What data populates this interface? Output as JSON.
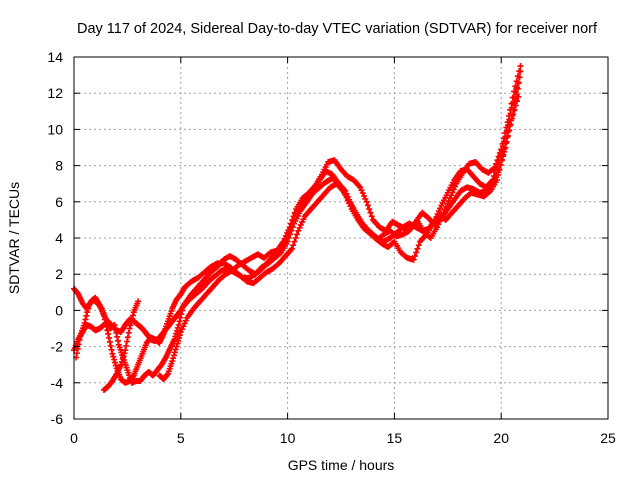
{
  "chart_data": {
    "type": "scatter",
    "title": "Day 117 of 2024, Sidereal Day-to-day VTEC variation (SDTVAR) for receiver norf",
    "xlabel": "GPS time / hours",
    "ylabel": "SDTVAR / TECUs",
    "xlim": [
      0,
      25
    ],
    "ylim": [
      -6,
      14
    ],
    "xticks": [
      0,
      5,
      10,
      15,
      20,
      25
    ],
    "yticks": [
      -6,
      -4,
      -2,
      0,
      2,
      4,
      6,
      8,
      10,
      12,
      14
    ],
    "grid": true,
    "legend": "none",
    "marker": "plus",
    "series_color": "#ff0000",
    "series": [
      {
        "x": [
          0.0,
          0.2,
          0.4,
          0.6,
          0.8,
          1.0,
          1.2,
          1.4,
          1.6,
          1.8,
          2.0,
          2.2,
          2.4,
          2.6,
          2.8,
          3.0,
          3.2,
          3.4,
          3.6,
          3.8,
          4.0,
          4.2,
          4.4,
          4.6,
          4.8,
          5.0,
          5.2,
          5.5,
          5.8,
          6.1,
          6.4,
          6.7,
          7.0,
          7.3,
          7.6,
          7.9,
          8.2,
          8.5,
          8.8,
          9.1,
          9.4,
          9.7,
          10.0,
          10.3,
          10.6,
          10.9,
          11.2,
          11.5,
          11.8,
          12.1,
          12.4,
          12.7,
          13.0,
          13.3,
          13.6,
          13.9,
          14.2,
          14.5,
          14.8,
          15.1,
          15.4,
          15.7,
          16.0,
          16.3,
          16.6,
          16.9,
          17.2,
          17.5,
          17.8,
          18.1,
          18.4,
          18.7,
          19.0,
          19.3,
          19.6,
          19.9,
          20.2,
          20.5,
          20.8
        ],
        "y": [
          -2.2,
          -1.6,
          -1.2,
          -0.8,
          -0.9,
          -1.1,
          -1.0,
          -0.8,
          -0.6,
          -0.9,
          -1.1,
          -1.2,
          -0.8,
          -0.5,
          -0.6,
          -0.8,
          -1.0,
          -1.3,
          -1.6,
          -1.7,
          -1.5,
          -1.2,
          -0.9,
          -0.6,
          -0.3,
          0.0,
          0.4,
          0.9,
          1.3,
          1.7,
          2.1,
          2.4,
          2.8,
          3.0,
          2.8,
          2.5,
          2.2,
          2.0,
          2.3,
          2.7,
          3.1,
          3.5,
          4.1,
          5.2,
          5.8,
          6.2,
          6.6,
          7.2,
          7.7,
          7.5,
          7.0,
          6.6,
          5.8,
          5.1,
          4.6,
          4.3,
          4.0,
          3.8,
          4.0,
          4.3,
          4.6,
          4.8,
          4.6,
          4.4,
          4.5,
          5.0,
          5.8,
          6.5,
          7.2,
          7.7,
          7.8,
          7.4,
          7.0,
          6.8,
          7.2,
          8.3,
          9.6,
          11.2,
          12.6
        ]
      },
      {
        "x": [
          0.0,
          0.2,
          0.4,
          0.6,
          0.8,
          1.0,
          1.2,
          1.4,
          1.6,
          1.8,
          2.0,
          2.2,
          2.4,
          2.6,
          2.8,
          3.0,
          3.2,
          3.4,
          3.6,
          3.8,
          4.0,
          4.2,
          4.4,
          4.6,
          4.8,
          5.0,
          5.2,
          5.5,
          5.8,
          6.1,
          6.4,
          6.7,
          7.0,
          7.3,
          7.6,
          7.9,
          8.2,
          8.5,
          8.8,
          9.1,
          9.4,
          9.7,
          10.0,
          10.3,
          10.6,
          10.9,
          11.2,
          11.5,
          11.8,
          12.1,
          12.4,
          12.7,
          13.0,
          13.3,
          13.6,
          13.9,
          14.2,
          14.5,
          14.8,
          15.1,
          15.4,
          15.7,
          16.0,
          16.3,
          16.6,
          16.9,
          17.2,
          17.5,
          17.8,
          18.1,
          18.4,
          18.7,
          19.0,
          19.3,
          19.6,
          19.9,
          20.2,
          20.5,
          20.8
        ],
        "y": [
          1.2,
          0.9,
          0.4,
          0.1,
          0.5,
          0.7,
          0.3,
          -0.3,
          -1.3,
          -2.4,
          -3.2,
          -3.8,
          -4.0,
          -3.9,
          -3.6,
          -3.0,
          -2.4,
          -1.8,
          -1.5,
          -1.6,
          -1.8,
          -1.3,
          -0.6,
          0.1,
          0.6,
          0.9,
          1.3,
          1.6,
          1.8,
          2.1,
          2.4,
          2.6,
          2.6,
          2.4,
          2.1,
          1.8,
          1.8,
          2.0,
          2.4,
          2.6,
          2.9,
          3.2,
          3.8,
          4.8,
          5.5,
          6.0,
          6.5,
          6.8,
          7.1,
          7.3,
          7.0,
          6.4,
          5.6,
          5.0,
          4.5,
          4.2,
          3.9,
          4.2,
          4.4,
          4.1,
          4.2,
          4.4,
          4.9,
          5.4,
          5.1,
          4.7,
          5.1,
          5.6,
          6.1,
          6.6,
          6.8,
          6.7,
          6.5,
          6.6,
          7.0,
          7.8,
          9.0,
          10.6,
          11.8
        ]
      },
      {
        "x": [
          0.1,
          0.3,
          0.5,
          0.7,
          0.9,
          1.1,
          1.3,
          1.5,
          1.7,
          1.9,
          2.1,
          2.3,
          2.5,
          2.7,
          2.9,
          3.1,
          3.3,
          3.5,
          3.7,
          3.9,
          4.1,
          4.3,
          4.5,
          4.7,
          4.9,
          5.1,
          5.4,
          5.7,
          6.0,
          6.3,
          6.6,
          6.9,
          7.2,
          7.5,
          7.8,
          8.1,
          8.4,
          8.7,
          9.0,
          9.3,
          9.6,
          9.9,
          10.2,
          10.5,
          10.8,
          11.1,
          11.4,
          11.7,
          12.0,
          12.3,
          12.6,
          12.9,
          13.2,
          13.5,
          13.8,
          14.1,
          14.4,
          14.7,
          15.0,
          15.3,
          15.6,
          15.9,
          16.2,
          16.5,
          16.8,
          17.1,
          17.4,
          17.7,
          18.0,
          18.3,
          18.6,
          18.9,
          19.2,
          19.5,
          19.8,
          20.1,
          20.4,
          20.7,
          20.9
        ],
        "y": [
          -2.6,
          -1.4,
          -0.7,
          0.3,
          0.6,
          0.4,
          0.1,
          -0.5,
          -1.0,
          -0.8,
          -1.9,
          -2.6,
          -3.3,
          -4.0,
          -3.9,
          -3.9,
          -3.6,
          -3.4,
          -3.6,
          -3.3,
          -3.0,
          -2.6,
          -2.1,
          -1.6,
          -0.8,
          0.2,
          0.6,
          0.9,
          1.2,
          1.6,
          1.9,
          2.2,
          2.3,
          2.1,
          1.9,
          1.6,
          1.5,
          1.8,
          2.1,
          2.3,
          2.6,
          3.0,
          3.4,
          4.4,
          5.2,
          5.6,
          6.0,
          6.4,
          6.8,
          7.0,
          6.6,
          6.0,
          5.4,
          4.8,
          4.4,
          4.0,
          3.7,
          3.5,
          3.8,
          3.2,
          2.9,
          2.8,
          3.8,
          4.2,
          4.8,
          5.3,
          5.0,
          5.4,
          5.8,
          6.2,
          6.5,
          6.4,
          6.3,
          6.6,
          7.2,
          8.6,
          10.2,
          11.6,
          13.2
        ]
      },
      {
        "x": [
          1.4,
          1.6,
          1.8,
          2.0,
          2.2,
          2.4,
          2.6,
          2.8,
          3.0,
          4.0,
          4.2,
          4.4,
          4.6,
          4.8,
          5.0,
          5.3,
          5.6,
          5.9,
          6.2,
          6.5,
          6.8,
          7.1,
          7.4,
          7.7,
          8.0,
          8.3,
          8.6,
          8.9,
          9.2,
          9.5,
          9.8,
          10.1,
          10.4,
          10.7,
          11.0,
          11.3,
          11.6,
          11.9,
          12.2,
          12.5,
          12.8,
          13.1,
          13.4,
          13.7,
          14.0,
          14.3,
          14.6,
          14.9,
          15.2,
          15.5,
          15.8,
          16.1,
          16.4,
          16.7,
          17.0,
          17.3,
          17.6,
          17.9,
          18.2,
          18.5,
          18.8,
          19.1,
          19.4,
          19.7,
          20.0,
          20.3,
          20.6,
          20.9
        ],
        "y": [
          -4.4,
          -4.2,
          -3.9,
          -3.5,
          -3.0,
          -2.2,
          -1.0,
          -0.1,
          0.5,
          -3.6,
          -3.8,
          -3.5,
          -2.8,
          -2.0,
          -1.2,
          -0.4,
          0.1,
          0.5,
          0.9,
          1.3,
          1.7,
          2.0,
          2.2,
          2.5,
          2.7,
          2.9,
          3.1,
          2.9,
          3.2,
          3.3,
          3.8,
          4.6,
          5.6,
          6.2,
          6.5,
          6.9,
          7.5,
          8.2,
          8.3,
          7.8,
          7.4,
          7.2,
          6.8,
          6.0,
          5.0,
          4.6,
          4.4,
          4.9,
          4.7,
          4.5,
          4.6,
          4.9,
          4.3,
          4.0,
          4.6,
          5.4,
          6.2,
          7.0,
          7.6,
          8.1,
          8.2,
          7.8,
          7.6,
          7.9,
          8.9,
          10.4,
          12.1,
          13.5
        ]
      }
    ]
  }
}
